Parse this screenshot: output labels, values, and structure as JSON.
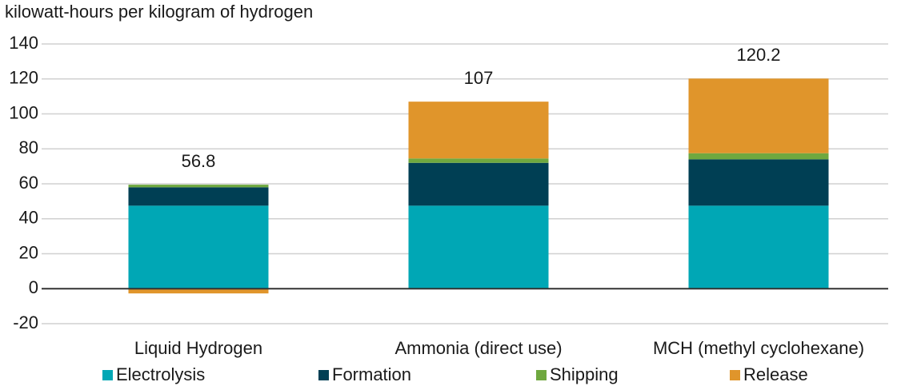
{
  "chart_data": {
    "type": "stacked_bar",
    "subtitle": "kilowatt-hours per kilogram of hydrogen",
    "categories": [
      "Liquid Hydrogen",
      "Ammonia (direct use)",
      "MCH (methyl cyclohexane)"
    ],
    "series": [
      {
        "name": "Electrolysis",
        "color": "#00a7b5",
        "values": [
          47.5,
          47.5,
          47.5
        ]
      },
      {
        "name": "Formation",
        "color": "#003f54",
        "values": [
          10.5,
          24.5,
          26.5
        ]
      },
      {
        "name": "Shipping",
        "color": "#6fa83f",
        "values": [
          1.5,
          2.5,
          3.5
        ]
      },
      {
        "name": "Release",
        "color": "#e0952b",
        "values": [
          -2.7,
          32.5,
          42.7
        ]
      }
    ],
    "totals": [
      56.8,
      107,
      120.2
    ],
    "ylim": [
      -20,
      140
    ],
    "yticks": [
      -20,
      0,
      20,
      40,
      60,
      80,
      100,
      120,
      140
    ],
    "grid": true,
    "legend": "bottom"
  }
}
